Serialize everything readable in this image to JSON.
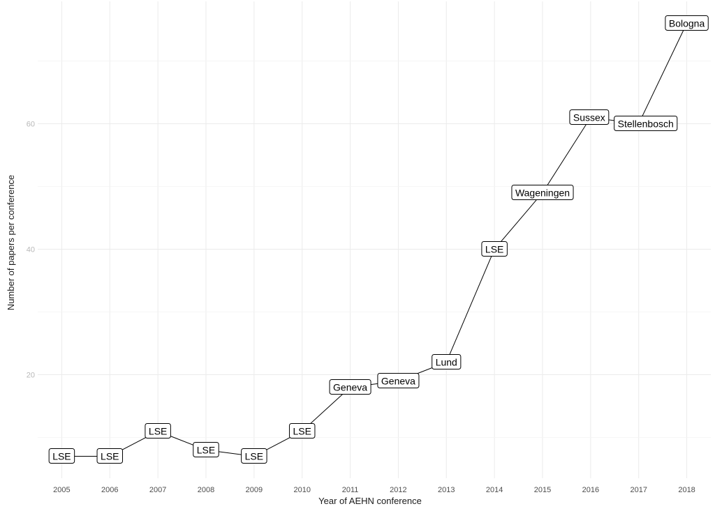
{
  "chart_data": {
    "type": "line",
    "title": "",
    "xlabel": "Year of AEHN conference",
    "ylabel": "Number of papers per conference",
    "x": [
      2005,
      2006,
      2007,
      2008,
      2009,
      2010,
      2011,
      2012,
      2013,
      2014,
      2015,
      2016,
      2017,
      2018
    ],
    "y": [
      7,
      7,
      11,
      8,
      7,
      11,
      18,
      19,
      22,
      40,
      49,
      61,
      60,
      76
    ],
    "point_labels": [
      "LSE",
      "LSE",
      "LSE",
      "LSE",
      "LSE",
      "LSE",
      "Geneva",
      "Geneva",
      "Lund",
      "LSE",
      "Wageningen",
      "Sussex",
      "Stellenbosch",
      "Bologna"
    ],
    "x_ticks": [
      "2005",
      "2006",
      "2007",
      "2008",
      "2009",
      "2010",
      "2011",
      "2012",
      "2013",
      "2014",
      "2015",
      "2016",
      "2017",
      "2018"
    ],
    "y_ticks": [
      20,
      40,
      60
    ],
    "ylim": [
      3.5,
      79.5
    ],
    "grid": true,
    "legend": "none"
  }
}
